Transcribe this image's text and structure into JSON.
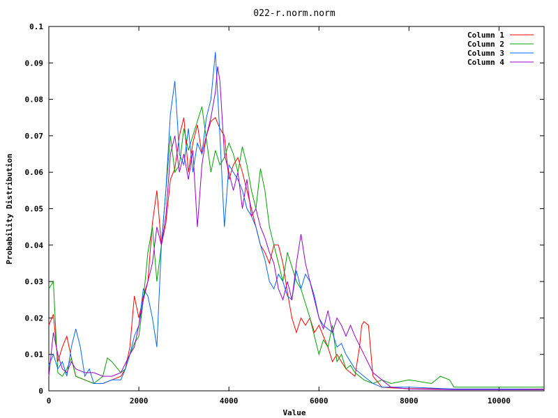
{
  "chart_data": {
    "type": "line",
    "title": "022-r.norm.norm",
    "xlabel": "Value",
    "ylabel": "Probability Distribution",
    "xlim": [
      0,
      11000
    ],
    "ylim": [
      0,
      0.1
    ],
    "xticks": [
      0,
      2000,
      4000,
      6000,
      8000,
      10000
    ],
    "yticks": [
      0,
      0.01,
      0.02,
      0.03,
      0.04,
      0.05,
      0.06,
      0.07,
      0.08,
      0.09,
      0.1
    ],
    "ytick_labels": [
      "0",
      "0.01",
      "0.02",
      "0.03",
      "0.04",
      "0.05",
      "0.06",
      "0.07",
      "0.08",
      "0.09",
      "0.1"
    ],
    "xtick_labels": [
      "0",
      "2000",
      "4000",
      "6000",
      "8000",
      "10000"
    ],
    "grid": false,
    "legend": "top-right",
    "series": [
      {
        "name": "Column 1",
        "color": "#ff0000",
        "x": [
          0,
          100,
          200,
          300,
          400,
          500,
          600,
          800,
          1000,
          1200,
          1400,
          1600,
          1700,
          1800,
          1900,
          2000,
          2100,
          2200,
          2300,
          2400,
          2500,
          2600,
          2700,
          2800,
          2900,
          3000,
          3100,
          3200,
          3300,
          3400,
          3500,
          3600,
          3700,
          3800,
          3900,
          4000,
          4100,
          4200,
          4300,
          4400,
          4500,
          4600,
          4700,
          4800,
          4900,
          5000,
          5100,
          5200,
          5300,
          5400,
          5500,
          5600,
          5700,
          5800,
          5900,
          6000,
          6100,
          6200,
          6300,
          6400,
          6500,
          6600,
          6700,
          6800,
          6900,
          6950,
          7000,
          7100,
          7200,
          7400,
          7600,
          8000,
          9000,
          10000,
          11000
        ],
        "values": [
          0.018,
          0.021,
          0.008,
          0.012,
          0.015,
          0.009,
          0.004,
          0.003,
          0.002,
          0.002,
          0.003,
          0.004,
          0.006,
          0.012,
          0.026,
          0.02,
          0.026,
          0.03,
          0.046,
          0.055,
          0.04,
          0.046,
          0.058,
          0.061,
          0.07,
          0.075,
          0.06,
          0.068,
          0.073,
          0.065,
          0.07,
          0.074,
          0.075,
          0.072,
          0.07,
          0.058,
          0.062,
          0.064,
          0.06,
          0.055,
          0.05,
          0.045,
          0.04,
          0.038,
          0.035,
          0.04,
          0.04,
          0.035,
          0.027,
          0.02,
          0.016,
          0.02,
          0.018,
          0.02,
          0.016,
          0.018,
          0.015,
          0.012,
          0.008,
          0.01,
          0.008,
          0.006,
          0.005,
          0.004,
          0.012,
          0.018,
          0.019,
          0.018,
          0.004,
          0.001,
          0.0008,
          0.0006,
          0.0005,
          0.0005,
          0.0005
        ]
      },
      {
        "name": "Column 2",
        "color": "#00a000",
        "x": [
          0,
          100,
          200,
          300,
          400,
          500,
          600,
          800,
          1000,
          1200,
          1300,
          1400,
          1600,
          1700,
          1800,
          1900,
          2000,
          2100,
          2200,
          2300,
          2400,
          2500,
          2600,
          2700,
          2800,
          2900,
          3000,
          3100,
          3200,
          3300,
          3400,
          3500,
          3600,
          3700,
          3800,
          3900,
          4000,
          4100,
          4200,
          4300,
          4400,
          4500,
          4600,
          4700,
          4800,
          4900,
          5000,
          5100,
          5200,
          5300,
          5400,
          5500,
          5600,
          5700,
          5800,
          5900,
          6000,
          6100,
          6200,
          6300,
          6400,
          6500,
          6600,
          6700,
          6800,
          7000,
          7200,
          7400,
          7600,
          8000,
          8500,
          8700,
          8900,
          9000,
          10000,
          11000
        ],
        "values": [
          0.028,
          0.03,
          0.005,
          0.004,
          0.006,
          0.009,
          0.004,
          0.003,
          0.002,
          0.004,
          0.009,
          0.008,
          0.005,
          0.006,
          0.01,
          0.013,
          0.015,
          0.025,
          0.038,
          0.045,
          0.03,
          0.04,
          0.055,
          0.07,
          0.06,
          0.062,
          0.072,
          0.066,
          0.07,
          0.074,
          0.078,
          0.069,
          0.06,
          0.066,
          0.062,
          0.064,
          0.068,
          0.065,
          0.06,
          0.067,
          0.062,
          0.055,
          0.05,
          0.061,
          0.055,
          0.045,
          0.04,
          0.035,
          0.03,
          0.038,
          0.034,
          0.03,
          0.028,
          0.024,
          0.02,
          0.015,
          0.01,
          0.014,
          0.012,
          0.018,
          0.008,
          0.01,
          0.006,
          0.007,
          0.005,
          0.003,
          0.002,
          0.003,
          0.002,
          0.003,
          0.002,
          0.004,
          0.003,
          0.001,
          0.001,
          0.001
        ]
      },
      {
        "name": "Column 3",
        "color": "#0066ff",
        "x": [
          0,
          100,
          200,
          300,
          400,
          500,
          600,
          700,
          800,
          900,
          1000,
          1200,
          1400,
          1600,
          1700,
          1800,
          1900,
          2000,
          2100,
          2200,
          2300,
          2400,
          2500,
          2600,
          2700,
          2800,
          2900,
          3000,
          3100,
          3200,
          3300,
          3400,
          3500,
          3600,
          3700,
          3800,
          3900,
          4000,
          4100,
          4200,
          4300,
          4400,
          4500,
          4600,
          4700,
          4800,
          4900,
          5000,
          5100,
          5200,
          5300,
          5400,
          5500,
          5600,
          5700,
          5800,
          5900,
          6000,
          6100,
          6200,
          6300,
          6400,
          6500,
          6600,
          6700,
          6800,
          7000,
          7200,
          7400,
          7600,
          8000,
          8400,
          8800,
          9000,
          10000,
          11000
        ],
        "values": [
          0.007,
          0.01,
          0.006,
          0.008,
          0.004,
          0.012,
          0.017,
          0.012,
          0.004,
          0.006,
          0.002,
          0.002,
          0.003,
          0.003,
          0.006,
          0.01,
          0.015,
          0.018,
          0.028,
          0.026,
          0.02,
          0.012,
          0.04,
          0.055,
          0.076,
          0.085,
          0.065,
          0.062,
          0.072,
          0.06,
          0.068,
          0.065,
          0.075,
          0.08,
          0.093,
          0.07,
          0.045,
          0.062,
          0.06,
          0.058,
          0.055,
          0.05,
          0.048,
          0.045,
          0.04,
          0.036,
          0.03,
          0.028,
          0.032,
          0.03,
          0.026,
          0.025,
          0.033,
          0.028,
          0.032,
          0.03,
          0.026,
          0.02,
          0.018,
          0.017,
          0.016,
          0.012,
          0.013,
          0.01,
          0.008,
          0.006,
          0.004,
          0.002,
          0.001,
          0.001,
          0.001,
          0.0008,
          0.0006,
          0.0005,
          0.0005,
          0.0004
        ]
      },
      {
        "name": "Column 4",
        "color": "#9900cc",
        "x": [
          0,
          100,
          200,
          300,
          400,
          500,
          600,
          800,
          1000,
          1200,
          1400,
          1600,
          1800,
          1900,
          2000,
          2100,
          2200,
          2300,
          2400,
          2500,
          2600,
          2700,
          2800,
          2900,
          3000,
          3100,
          3200,
          3300,
          3400,
          3500,
          3600,
          3700,
          3750,
          3800,
          3900,
          4000,
          4100,
          4200,
          4300,
          4400,
          4500,
          4600,
          4700,
          4800,
          4900,
          5000,
          5100,
          5200,
          5300,
          5400,
          5500,
          5600,
          5700,
          5800,
          5900,
          6000,
          6100,
          6200,
          6300,
          6400,
          6500,
          6600,
          6700,
          6800,
          7000,
          7200,
          7400,
          7600,
          8000,
          9000,
          10000,
          11000
        ],
        "values": [
          0.004,
          0.016,
          0.01,
          0.006,
          0.005,
          0.008,
          0.006,
          0.005,
          0.005,
          0.004,
          0.004,
          0.005,
          0.01,
          0.012,
          0.018,
          0.025,
          0.03,
          0.035,
          0.045,
          0.04,
          0.048,
          0.065,
          0.07,
          0.06,
          0.065,
          0.058,
          0.066,
          0.045,
          0.062,
          0.07,
          0.075,
          0.082,
          0.089,
          0.085,
          0.065,
          0.06,
          0.055,
          0.06,
          0.05,
          0.058,
          0.048,
          0.05,
          0.045,
          0.042,
          0.038,
          0.035,
          0.028,
          0.025,
          0.03,
          0.025,
          0.035,
          0.043,
          0.035,
          0.03,
          0.025,
          0.02,
          0.017,
          0.022,
          0.016,
          0.02,
          0.018,
          0.015,
          0.018,
          0.015,
          0.01,
          0.005,
          0.003,
          0.001,
          0.0005,
          0.0003,
          0.0003,
          0.0003
        ]
      }
    ]
  }
}
